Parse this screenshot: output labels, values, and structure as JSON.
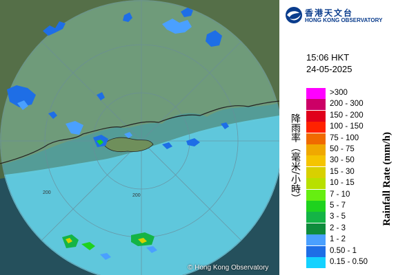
{
  "header": {
    "logo_chinese": "香港天文台",
    "logo_english": "HONG KONG OBSERVATORY"
  },
  "timestamp": {
    "time": "15:06 HKT",
    "date": "24-05-2025"
  },
  "legend": {
    "title_chinese": "降雨率（毫米/小時）",
    "title_english": "Rainfall Rate (mm/h)",
    "items": [
      {
        "label": ">300",
        "color": "#ff00ff"
      },
      {
        "label": "200 - 300",
        "color": "#cc0066"
      },
      {
        "label": "150 - 200",
        "color": "#e0001b"
      },
      {
        "label": "100 - 150",
        "color": "#ff2200"
      },
      {
        "label": "75 - 100",
        "color": "#f06a00"
      },
      {
        "label": "50 - 75",
        "color": "#f0a800"
      },
      {
        "label": "30 - 50",
        "color": "#f5c400"
      },
      {
        "label": "15 - 30",
        "color": "#d8d000"
      },
      {
        "label": "10 - 15",
        "color": "#b8e000"
      },
      {
        "label": "7 - 10",
        "color": "#66ee11"
      },
      {
        "label": "5 - 7",
        "color": "#1ed21e"
      },
      {
        "label": "3 - 5",
        "color": "#14b446"
      },
      {
        "label": "2 - 3",
        "color": "#0f8c3c"
      },
      {
        "label": "1 - 2",
        "color": "#4aa0ff"
      },
      {
        "label": "0.50 - 1",
        "color": "#1e6ee6"
      },
      {
        "label": "0.15 - 0.50",
        "color": "#14d2ff"
      }
    ]
  },
  "map": {
    "range_labels": [
      "200",
      "200"
    ],
    "copyright": "© Hong Kong Observatory",
    "colors": {
      "land": "#4f6a45",
      "sea": "#2a4a55",
      "radar_disc": "#5bc8dc"
    }
  }
}
